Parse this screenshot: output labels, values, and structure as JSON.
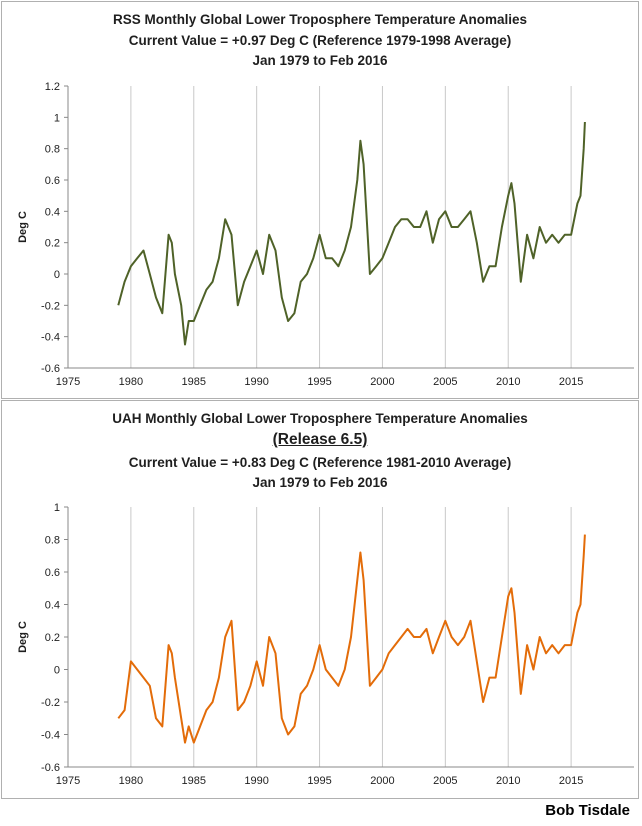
{
  "credit": "Bob Tisdale",
  "colors": {
    "rss_line": "#4f6228",
    "uah_line": "#e36c09",
    "grid": "#c8c8c8",
    "axis": "#888888"
  },
  "chart_data": [
    {
      "type": "line",
      "title_lines": [
        "RSS Monthly Global Lower Troposphere Temperature Anomalies",
        "Current Value = +0.97 Deg C (Reference 1979-1998 Average)",
        "Jan 1979 to Feb 2016"
      ],
      "ylabel": "Deg C",
      "xlabel": "",
      "xlim": [
        1975,
        2020
      ],
      "ylim": [
        -0.6,
        1.2
      ],
      "xticks": [
        "1975",
        "1980",
        "1985",
        "1990",
        "1995",
        "2000",
        "2005",
        "2010",
        "2015"
      ],
      "yticks": [
        "1.2",
        "1",
        "0.8",
        "0.6",
        "0.4",
        "0.2",
        "0",
        "-0.2",
        "-0.4",
        "-0.6"
      ],
      "grid": "vertical",
      "series": [
        {
          "x": [
            1979.0,
            1979.5,
            1980.0,
            1980.5,
            1981.0,
            1981.5,
            1982.0,
            1982.5,
            1983.0,
            1983.25,
            1983.5,
            1984.0,
            1984.3,
            1984.6,
            1985.0,
            1985.5,
            1986.0,
            1986.5,
            1987.0,
            1987.5,
            1988.0,
            1988.5,
            1989.0,
            1989.5,
            1990.0,
            1990.5,
            1991.0,
            1991.5,
            1992.0,
            1992.5,
            1993.0,
            1993.5,
            1994.0,
            1994.5,
            1995.0,
            1995.5,
            1996.0,
            1996.5,
            1997.0,
            1997.5,
            1998.0,
            1998.25,
            1998.5,
            1999.0,
            1999.5,
            2000.0,
            2000.5,
            2001.0,
            2001.5,
            2002.0,
            2002.5,
            2003.0,
            2003.5,
            2004.0,
            2004.5,
            2005.0,
            2005.5,
            2006.0,
            2006.5,
            2007.0,
            2007.5,
            2008.0,
            2008.5,
            2009.0,
            2009.5,
            2010.0,
            2010.25,
            2010.5,
            2011.0,
            2011.5,
            2012.0,
            2012.5,
            2013.0,
            2013.5,
            2014.0,
            2014.5,
            2015.0,
            2015.5,
            2015.75,
            2016.0,
            2016.1
          ],
          "values": [
            -0.2,
            -0.05,
            0.05,
            0.1,
            0.15,
            0.0,
            -0.15,
            -0.25,
            0.25,
            0.2,
            0.0,
            -0.2,
            -0.45,
            -0.3,
            -0.3,
            -0.2,
            -0.1,
            -0.05,
            0.1,
            0.35,
            0.25,
            -0.2,
            -0.05,
            0.05,
            0.15,
            0.0,
            0.25,
            0.15,
            -0.15,
            -0.3,
            -0.25,
            -0.05,
            0.0,
            0.1,
            0.25,
            0.1,
            0.1,
            0.05,
            0.15,
            0.3,
            0.6,
            0.85,
            0.7,
            0.0,
            0.05,
            0.1,
            0.2,
            0.3,
            0.35,
            0.35,
            0.3,
            0.3,
            0.4,
            0.2,
            0.35,
            0.4,
            0.3,
            0.3,
            0.35,
            0.4,
            0.2,
            -0.05,
            0.05,
            0.05,
            0.3,
            0.5,
            0.58,
            0.45,
            -0.05,
            0.25,
            0.1,
            0.3,
            0.2,
            0.25,
            0.2,
            0.25,
            0.25,
            0.45,
            0.5,
            0.8,
            0.97
          ],
          "color": "#4f6228"
        }
      ]
    },
    {
      "type": "line",
      "title_lines": [
        "UAH Monthly Global Lower Troposphere Temperature Anomalies",
        "(Release 6.5)",
        "Current Value = +0.83 Deg C (Reference 1981-2010 Average)",
        "Jan 1979 to Feb 2016"
      ],
      "ylabel": "Deg C",
      "xlabel": "",
      "xlim": [
        1975,
        2020
      ],
      "ylim": [
        -0.6,
        1.0
      ],
      "xticks": [
        "1975",
        "1980",
        "1985",
        "1990",
        "1995",
        "2000",
        "2005",
        "2010",
        "2015"
      ],
      "yticks": [
        "1",
        "0.8",
        "0.6",
        "0.4",
        "0.2",
        "0",
        "-0.2",
        "-0.4",
        "-0.6"
      ],
      "grid": "vertical",
      "series": [
        {
          "x": [
            1979.0,
            1979.5,
            1980.0,
            1980.5,
            1981.0,
            1981.5,
            1982.0,
            1982.5,
            1983.0,
            1983.25,
            1983.5,
            1984.0,
            1984.3,
            1984.6,
            1985.0,
            1985.5,
            1986.0,
            1986.5,
            1987.0,
            1987.5,
            1988.0,
            1988.5,
            1989.0,
            1989.5,
            1990.0,
            1990.5,
            1991.0,
            1991.5,
            1992.0,
            1992.5,
            1993.0,
            1993.5,
            1994.0,
            1994.5,
            1995.0,
            1995.5,
            1996.0,
            1996.5,
            1997.0,
            1997.5,
            1998.0,
            1998.25,
            1998.5,
            1999.0,
            1999.5,
            2000.0,
            2000.5,
            2001.0,
            2001.5,
            2002.0,
            2002.5,
            2003.0,
            2003.5,
            2004.0,
            2004.5,
            2005.0,
            2005.5,
            2006.0,
            2006.5,
            2007.0,
            2007.5,
            2008.0,
            2008.5,
            2009.0,
            2009.5,
            2010.0,
            2010.25,
            2010.5,
            2011.0,
            2011.5,
            2012.0,
            2012.5,
            2013.0,
            2013.5,
            2014.0,
            2014.5,
            2015.0,
            2015.5,
            2015.75,
            2016.0,
            2016.1
          ],
          "values": [
            -0.3,
            -0.25,
            0.05,
            0.0,
            -0.05,
            -0.1,
            -0.3,
            -0.35,
            0.15,
            0.1,
            -0.05,
            -0.3,
            -0.45,
            -0.35,
            -0.45,
            -0.35,
            -0.25,
            -0.2,
            -0.05,
            0.2,
            0.3,
            -0.25,
            -0.2,
            -0.1,
            0.05,
            -0.1,
            0.2,
            0.1,
            -0.3,
            -0.4,
            -0.35,
            -0.15,
            -0.1,
            0.0,
            0.15,
            0.0,
            -0.05,
            -0.1,
            0.0,
            0.2,
            0.55,
            0.72,
            0.55,
            -0.1,
            -0.05,
            0.0,
            0.1,
            0.15,
            0.2,
            0.25,
            0.2,
            0.2,
            0.25,
            0.1,
            0.2,
            0.3,
            0.2,
            0.15,
            0.2,
            0.3,
            0.05,
            -0.2,
            -0.05,
            -0.05,
            0.2,
            0.45,
            0.5,
            0.35,
            -0.15,
            0.15,
            0.0,
            0.2,
            0.1,
            0.15,
            0.1,
            0.15,
            0.15,
            0.35,
            0.4,
            0.7,
            0.83
          ],
          "color": "#e36c09"
        }
      ]
    }
  ]
}
